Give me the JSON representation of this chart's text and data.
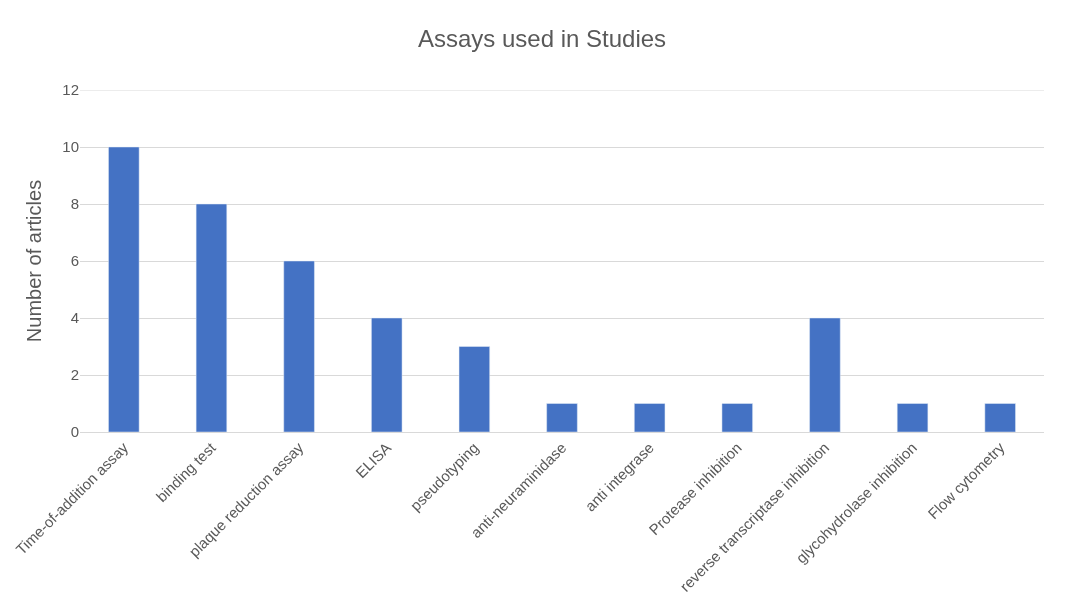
{
  "chart_data": {
    "type": "bar",
    "title": "Assays used in Studies",
    "ylabel": "Number of articles",
    "categories": [
      "Time-of-addition assay",
      "binding test",
      "plaque reduction assay",
      "ELISA",
      "pseudotyping",
      "anti-neuraminidase",
      "anti integrase",
      "Protease inhibition",
      "reverse transcriptase inhibition",
      "glycohydrolase inhibition",
      "Flow cytometry"
    ],
    "values": [
      10,
      8,
      6,
      4,
      3,
      1,
      1,
      1,
      4,
      1,
      1
    ],
    "color": "#4472c4",
    "ylim": [
      0,
      12
    ],
    "yticks": [
      0,
      2,
      4,
      6,
      8,
      10,
      12
    ],
    "grid": "y"
  }
}
